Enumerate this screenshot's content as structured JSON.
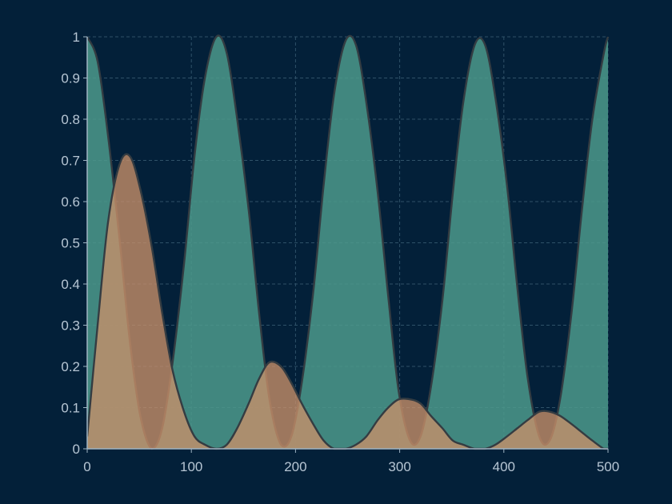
{
  "chart_data": {
    "type": "area",
    "title": "",
    "xlabel": "",
    "ylabel": "",
    "xlim": [
      0,
      500
    ],
    "ylim": [
      0,
      1
    ],
    "x_ticks": [
      "0",
      "100",
      "200",
      "300",
      "400",
      "500"
    ],
    "y_ticks": [
      "0",
      "0.1",
      "0.2",
      "0.3",
      "0.4",
      "0.5",
      "0.6",
      "0.7",
      "0.8",
      "0.9",
      "1"
    ],
    "grid": true,
    "legend": "none",
    "series": [
      {
        "color": "#4c9a8c",
        "x": [
          0,
          10,
          20,
          31,
          41,
          51,
          62,
          72,
          82,
          93,
          103,
          113,
          124,
          134,
          144,
          155,
          165,
          175,
          186,
          196,
          206,
          217,
          227,
          237,
          248,
          258,
          268,
          279,
          289,
          299,
          310,
          320,
          330,
          341,
          351,
          361,
          372,
          382,
          392,
          403,
          413,
          423,
          434,
          444,
          454,
          465,
          475,
          485,
          496,
          500
        ],
        "y": [
          1.0,
          0.94,
          0.76,
          0.51,
          0.26,
          0.08,
          0.0,
          0.05,
          0.21,
          0.45,
          0.71,
          0.9,
          1.0,
          0.96,
          0.8,
          0.58,
          0.33,
          0.12,
          0.01,
          0.03,
          0.16,
          0.38,
          0.64,
          0.86,
          0.99,
          0.98,
          0.84,
          0.62,
          0.37,
          0.14,
          0.02,
          0.03,
          0.15,
          0.36,
          0.62,
          0.84,
          0.98,
          0.98,
          0.85,
          0.64,
          0.39,
          0.17,
          0.03,
          0.02,
          0.12,
          0.33,
          0.58,
          0.8,
          0.96,
          1.0
        ]
      },
      {
        "color": "#c98f69",
        "x": [
          0,
          10,
          20,
          31,
          41,
          51,
          62,
          72,
          82,
          93,
          103,
          113,
          124,
          134,
          144,
          155,
          165,
          175,
          186,
          196,
          206,
          217,
          227,
          237,
          248,
          258,
          268,
          279,
          289,
          299,
          310,
          320,
          330,
          341,
          351,
          361,
          372,
          382,
          392,
          403,
          413,
          423,
          434,
          444,
          454,
          465,
          475,
          485,
          496,
          500
        ],
        "y": [
          0.03,
          0.3,
          0.55,
          0.69,
          0.71,
          0.63,
          0.49,
          0.33,
          0.19,
          0.09,
          0.03,
          0.01,
          0.0,
          0.01,
          0.05,
          0.11,
          0.17,
          0.21,
          0.2,
          0.16,
          0.11,
          0.06,
          0.02,
          0.0,
          0.0,
          0.01,
          0.03,
          0.07,
          0.1,
          0.12,
          0.12,
          0.11,
          0.08,
          0.05,
          0.02,
          0.01,
          0.0,
          0.0,
          0.01,
          0.03,
          0.05,
          0.07,
          0.09,
          0.09,
          0.08,
          0.06,
          0.04,
          0.02,
          0.0,
          0.0
        ]
      }
    ]
  }
}
